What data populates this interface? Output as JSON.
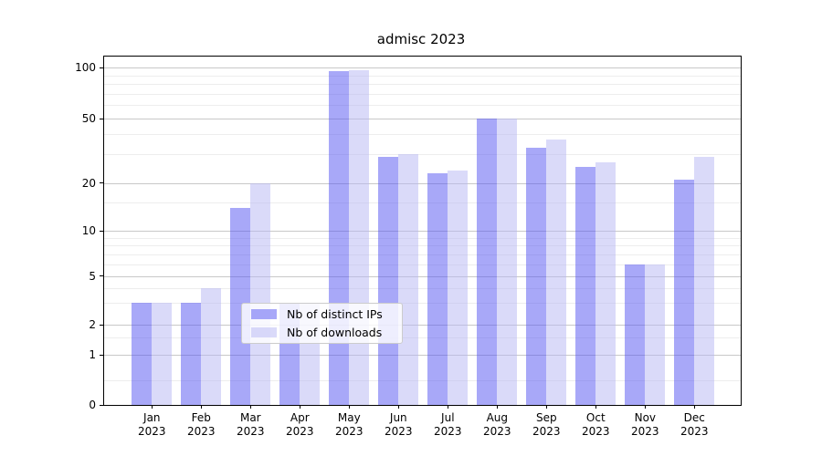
{
  "title": "admisc 2023",
  "chart_data": {
    "type": "bar",
    "title": "admisc 2023",
    "categories": [
      "Jan 2023",
      "Feb 2023",
      "Mar 2023",
      "Apr 2023",
      "May 2023",
      "Jun 2023",
      "Jul 2023",
      "Aug 2023",
      "Sep 2023",
      "Oct 2023",
      "Nov 2023",
      "Dec 2023"
    ],
    "series": [
      {
        "name": "Nb of distinct IPs",
        "color": "rgba(82,82,242,0.5)",
        "values": [
          3,
          3,
          14,
          3,
          95,
          29,
          23,
          50,
          33,
          25,
          6,
          21
        ]
      },
      {
        "name": "Nb of downloads",
        "color": "rgba(182,182,244,0.5)",
        "values": [
          3,
          4,
          20,
          3,
          97,
          30,
          24,
          50,
          37,
          27,
          6,
          29
        ]
      }
    ],
    "y_axis": {
      "scale": "log-like",
      "major_ticks": [
        0,
        1,
        2,
        5,
        10,
        20,
        50,
        100
      ],
      "minor_ticks": [
        0.5,
        1.5,
        3,
        4,
        6,
        7,
        8,
        9,
        15,
        30,
        40,
        60,
        70,
        80,
        90
      ]
    },
    "x_axis": {
      "tick_year": "2023"
    },
    "legend_position": "lower center",
    "grid": {
      "horizontal": true,
      "major_color": "#c8c8c8",
      "minor_color": "#ededed"
    }
  },
  "colors": {
    "distinct_ips": "rgba(82,82,242,0.5)",
    "downloads": "rgba(182,182,244,0.5)",
    "axis": "#000000",
    "background": "#ffffff"
  }
}
